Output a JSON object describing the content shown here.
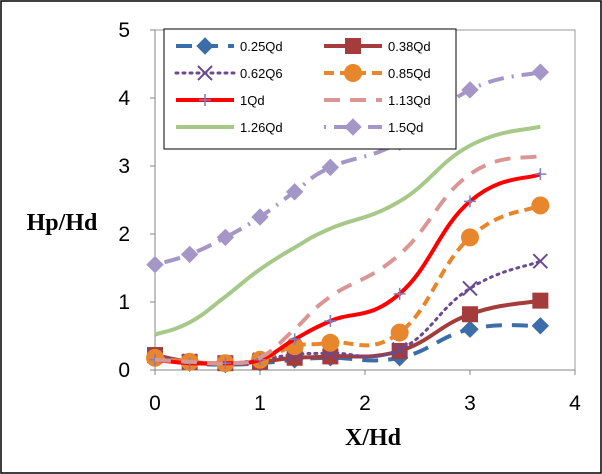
{
  "chart_data": {
    "type": "line",
    "title": "",
    "xlabel": "X/Hd",
    "ylabel": "Hp/Hd",
    "xlim": [
      0,
      4
    ],
    "ylim": [
      0,
      5
    ],
    "xticks": [
      "0",
      "1",
      "2",
      "3",
      "4"
    ],
    "yticks": [
      "0",
      "1",
      "2",
      "3",
      "4",
      "5"
    ],
    "grid": false,
    "legend_position": "top-center",
    "x": [
      0,
      0.33,
      0.67,
      1,
      1.33,
      1.67,
      2.33,
      3,
      3.67
    ],
    "series": [
      {
        "name": "0.25Qd",
        "color": "#3b6ea8",
        "dash": "long-dash",
        "marker": "diamond",
        "values": [
          0.17,
          0.1,
          0.08,
          0.1,
          0.15,
          0.18,
          0.18,
          0.6,
          0.65
        ]
      },
      {
        "name": "0.38Qd",
        "color": "#a33c3a",
        "dash": "solid",
        "marker": "square",
        "values": [
          0.22,
          0.12,
          0.1,
          0.12,
          0.18,
          0.2,
          0.28,
          0.82,
          1.02
        ]
      },
      {
        "name": "0.62Q6",
        "color": "#6b4a91",
        "dash": "dotted",
        "marker": "x",
        "values": [
          0.2,
          0.13,
          0.1,
          0.15,
          0.23,
          0.25,
          0.3,
          1.2,
          1.6
        ]
      },
      {
        "name": "0.85Qd",
        "color": "#e8862b",
        "dash": "dashed",
        "marker": "circle",
        "values": [
          0.18,
          0.12,
          0.1,
          0.15,
          0.35,
          0.4,
          0.55,
          1.95,
          2.42
        ]
      },
      {
        "name": "1Qd",
        "color": "#ff0000",
        "dash": "solid",
        "marker": "plus",
        "values": [
          0.15,
          0.1,
          0.1,
          0.15,
          0.45,
          0.72,
          1.12,
          2.48,
          2.88
        ]
      },
      {
        "name": "1.13Qd",
        "color": "#d99694",
        "dash": "long-dash",
        "marker": "none",
        "values": [
          0.15,
          0.12,
          0.1,
          0.18,
          0.6,
          1.08,
          1.7,
          2.88,
          3.15
        ]
      },
      {
        "name": "1.26Qd",
        "color": "#a6c98a",
        "dash": "solid",
        "marker": "none",
        "values": [
          0.52,
          0.7,
          1.08,
          1.48,
          1.8,
          2.08,
          2.48,
          3.3,
          3.58
        ]
      },
      {
        "name": "1.5Qd",
        "color": "#a596c8",
        "dash": "dash-dot",
        "marker": "diamond",
        "values": [
          1.55,
          1.7,
          1.95,
          2.25,
          2.62,
          2.98,
          3.35,
          4.12,
          4.38
        ]
      }
    ]
  }
}
